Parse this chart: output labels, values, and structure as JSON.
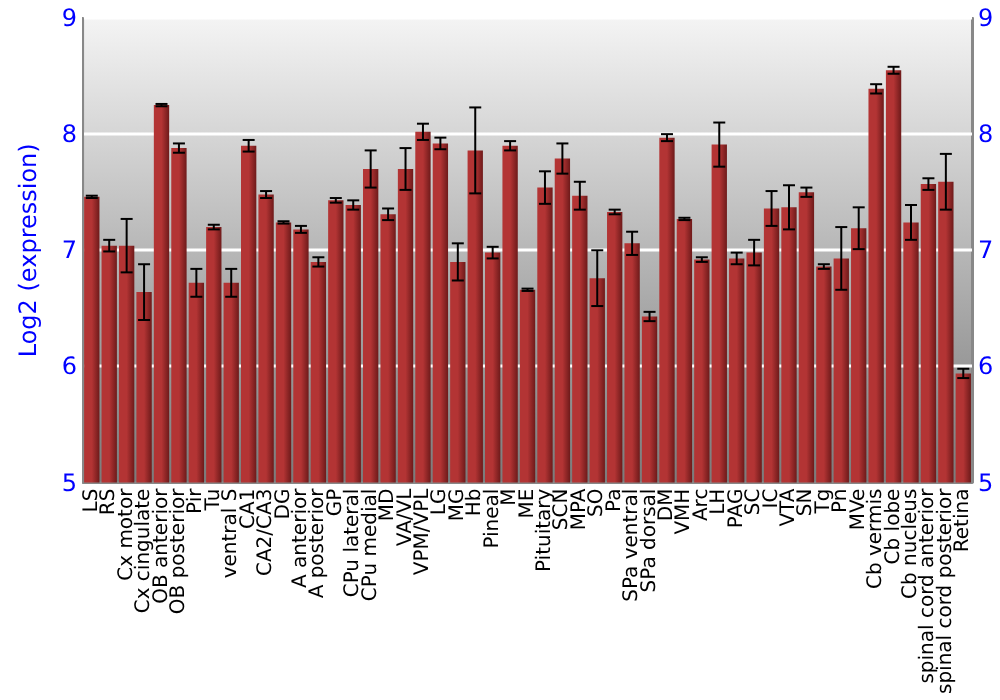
{
  "chart_data": {
    "type": "bar",
    "ylabel": "Log2 (expression)",
    "categories": [
      "LS",
      "RS",
      "Cx motor",
      "Cx cingulate",
      "OB anterior",
      "OB posterior",
      "Pir",
      "Tu",
      "ventral S",
      "CA1",
      "CA2/CA3",
      "DG",
      "A anterior",
      "A posterior",
      "GP",
      "CPu lateral",
      "CPu medial",
      "MD",
      "VA/VL",
      "VPM/VPL",
      "LG",
      "MG",
      "Hb",
      "Pineal",
      "M",
      "ME",
      "Pituitary",
      "SCN",
      "MPA",
      "SO",
      "Pa",
      "SPa ventral",
      "SPa dorsal",
      "DM",
      "VMH",
      "Arc",
      "LH",
      "PAG",
      "SC",
      "IC",
      "VTA",
      "SN",
      "Tg",
      "Pn",
      "MVe",
      "Cb vermis",
      "Cb lobe",
      "Cb nucleus",
      "spinal cord anterior",
      "spinal cord posterior",
      "Retina"
    ],
    "values": [
      7.46,
      7.04,
      7.04,
      6.64,
      8.25,
      7.88,
      6.72,
      7.2,
      6.72,
      7.9,
      7.48,
      7.24,
      7.18,
      6.9,
      7.43,
      7.39,
      7.7,
      7.31,
      7.7,
      8.02,
      7.92,
      6.9,
      7.86,
      6.98,
      7.9,
      6.66,
      7.54,
      7.79,
      7.47,
      6.76,
      7.33,
      7.06,
      6.43,
      7.97,
      7.27,
      6.92,
      7.91,
      6.93,
      6.98,
      7.36,
      7.37,
      7.5,
      6.86,
      6.93,
      7.19,
      8.39,
      8.55,
      7.24,
      7.57,
      7.59,
      5.94
    ],
    "errors": [
      0.01,
      0.05,
      0.23,
      0.24,
      0.01,
      0.04,
      0.12,
      0.02,
      0.12,
      0.05,
      0.03,
      0.01,
      0.03,
      0.04,
      0.02,
      0.04,
      0.16,
      0.05,
      0.18,
      0.07,
      0.05,
      0.16,
      0.37,
      0.05,
      0.04,
      0.01,
      0.14,
      0.13,
      0.12,
      0.24,
      0.02,
      0.1,
      0.04,
      0.03,
      0.01,
      0.02,
      0.19,
      0.05,
      0.11,
      0.15,
      0.19,
      0.04,
      0.02,
      0.27,
      0.18,
      0.04,
      0.03,
      0.15,
      0.05,
      0.24,
      0.04
    ],
    "color": "#b33434",
    "ylim": [
      5,
      9
    ],
    "yticks": [
      5,
      6,
      7,
      8,
      9
    ],
    "y2lim": [
      5,
      9
    ],
    "y2ticks": [
      5,
      6,
      7,
      8,
      9
    ],
    "grid": "y"
  }
}
